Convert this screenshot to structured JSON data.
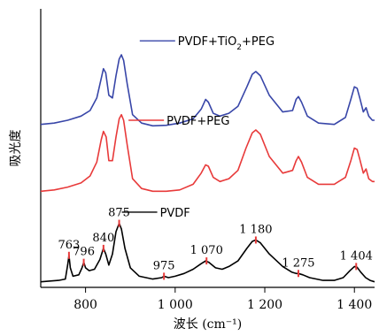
{
  "chart_data": {
    "type": "line",
    "xlabel": "波长 (cm⁻¹)",
    "ylabel": "吸光度",
    "xlim": [
      700,
      1445
    ],
    "ylim": [
      0,
      1.0
    ],
    "x_ticks": [
      {
        "value": 800,
        "label": "800"
      },
      {
        "value": 1000,
        "label": "1 000"
      },
      {
        "value": 1200,
        "label": "1 200"
      },
      {
        "value": 1400,
        "label": "1 400"
      }
    ],
    "grid": false,
    "legend": "inline, above each curve",
    "series": [
      {
        "name": "PVDF+TiO₂+PEG",
        "color": "#3846a8",
        "points": [
          [
            700,
            0.585
          ],
          [
            730,
            0.59
          ],
          [
            760,
            0.6
          ],
          [
            790,
            0.615
          ],
          [
            810,
            0.635
          ],
          [
            825,
            0.68
          ],
          [
            835,
            0.75
          ],
          [
            840,
            0.785
          ],
          [
            845,
            0.77
          ],
          [
            852,
            0.69
          ],
          [
            860,
            0.68
          ],
          [
            868,
            0.76
          ],
          [
            875,
            0.82
          ],
          [
            880,
            0.835
          ],
          [
            885,
            0.815
          ],
          [
            893,
            0.73
          ],
          [
            905,
            0.62
          ],
          [
            925,
            0.59
          ],
          [
            950,
            0.58
          ],
          [
            980,
            0.582
          ],
          [
            1010,
            0.59
          ],
          [
            1040,
            0.605
          ],
          [
            1058,
            0.64
          ],
          [
            1068,
            0.675
          ],
          [
            1074,
            0.665
          ],
          [
            1085,
            0.625
          ],
          [
            1100,
            0.615
          ],
          [
            1120,
            0.625
          ],
          [
            1140,
            0.65
          ],
          [
            1160,
            0.72
          ],
          [
            1172,
            0.765
          ],
          [
            1180,
            0.775
          ],
          [
            1190,
            0.76
          ],
          [
            1210,
            0.69
          ],
          [
            1240,
            0.63
          ],
          [
            1262,
            0.635
          ],
          [
            1270,
            0.675
          ],
          [
            1275,
            0.685
          ],
          [
            1282,
            0.665
          ],
          [
            1295,
            0.615
          ],
          [
            1320,
            0.59
          ],
          [
            1355,
            0.585
          ],
          [
            1380,
            0.61
          ],
          [
            1392,
            0.675
          ],
          [
            1400,
            0.72
          ],
          [
            1406,
            0.715
          ],
          [
            1412,
            0.68
          ],
          [
            1420,
            0.63
          ],
          [
            1426,
            0.645
          ],
          [
            1432,
            0.615
          ],
          [
            1440,
            0.6
          ],
          [
            1445,
            0.6
          ]
        ]
      },
      {
        "name": "PVDF+PEG",
        "color": "#e83a3a",
        "points": [
          [
            700,
            0.345
          ],
          [
            730,
            0.35
          ],
          [
            760,
            0.36
          ],
          [
            790,
            0.375
          ],
          [
            810,
            0.4
          ],
          [
            825,
            0.45
          ],
          [
            835,
            0.53
          ],
          [
            840,
            0.56
          ],
          [
            846,
            0.54
          ],
          [
            852,
            0.455
          ],
          [
            860,
            0.455
          ],
          [
            868,
            0.54
          ],
          [
            875,
            0.605
          ],
          [
            880,
            0.62
          ],
          [
            885,
            0.6
          ],
          [
            893,
            0.51
          ],
          [
            905,
            0.39
          ],
          [
            925,
            0.355
          ],
          [
            950,
            0.345
          ],
          [
            980,
            0.345
          ],
          [
            1010,
            0.35
          ],
          [
            1040,
            0.37
          ],
          [
            1058,
            0.41
          ],
          [
            1068,
            0.44
          ],
          [
            1074,
            0.435
          ],
          [
            1085,
            0.395
          ],
          [
            1100,
            0.38
          ],
          [
            1120,
            0.39
          ],
          [
            1140,
            0.42
          ],
          [
            1158,
            0.5
          ],
          [
            1172,
            0.555
          ],
          [
            1180,
            0.565
          ],
          [
            1190,
            0.55
          ],
          [
            1210,
            0.47
          ],
          [
            1240,
            0.41
          ],
          [
            1262,
            0.42
          ],
          [
            1270,
            0.455
          ],
          [
            1275,
            0.47
          ],
          [
            1282,
            0.45
          ],
          [
            1295,
            0.395
          ],
          [
            1320,
            0.37
          ],
          [
            1355,
            0.37
          ],
          [
            1380,
            0.395
          ],
          [
            1392,
            0.455
          ],
          [
            1400,
            0.5
          ],
          [
            1406,
            0.495
          ],
          [
            1412,
            0.46
          ],
          [
            1420,
            0.41
          ],
          [
            1426,
            0.425
          ],
          [
            1432,
            0.39
          ],
          [
            1440,
            0.38
          ],
          [
            1445,
            0.38
          ]
        ]
      },
      {
        "name": "PVDF",
        "color": "#000000",
        "points": [
          [
            700,
            0.02
          ],
          [
            740,
            0.025
          ],
          [
            755,
            0.03
          ],
          [
            760,
            0.08
          ],
          [
            763,
            0.115
          ],
          [
            766,
            0.07
          ],
          [
            772,
            0.04
          ],
          [
            785,
            0.045
          ],
          [
            792,
            0.07
          ],
          [
            796,
            0.09
          ],
          [
            800,
            0.07
          ],
          [
            808,
            0.06
          ],
          [
            820,
            0.065
          ],
          [
            832,
            0.1
          ],
          [
            840,
            0.14
          ],
          [
            845,
            0.12
          ],
          [
            852,
            0.08
          ],
          [
            860,
            0.12
          ],
          [
            868,
            0.2
          ],
          [
            875,
            0.23
          ],
          [
            880,
            0.21
          ],
          [
            888,
            0.14
          ],
          [
            900,
            0.07
          ],
          [
            920,
            0.04
          ],
          [
            950,
            0.03
          ],
          [
            970,
            0.035
          ],
          [
            975,
            0.04
          ],
          [
            985,
            0.035
          ],
          [
            1000,
            0.04
          ],
          [
            1020,
            0.05
          ],
          [
            1040,
            0.065
          ],
          [
            1058,
            0.085
          ],
          [
            1068,
            0.095
          ],
          [
            1075,
            0.09
          ],
          [
            1090,
            0.07
          ],
          [
            1105,
            0.065
          ],
          [
            1120,
            0.075
          ],
          [
            1140,
            0.095
          ],
          [
            1160,
            0.14
          ],
          [
            1172,
            0.165
          ],
          [
            1180,
            0.17
          ],
          [
            1190,
            0.16
          ],
          [
            1210,
            0.12
          ],
          [
            1240,
            0.075
          ],
          [
            1260,
            0.055
          ],
          [
            1270,
            0.05
          ],
          [
            1275,
            0.05
          ],
          [
            1285,
            0.045
          ],
          [
            1300,
            0.035
          ],
          [
            1330,
            0.025
          ],
          [
            1355,
            0.025
          ],
          [
            1375,
            0.035
          ],
          [
            1390,
            0.06
          ],
          [
            1400,
            0.075
          ],
          [
            1406,
            0.072
          ],
          [
            1414,
            0.055
          ],
          [
            1425,
            0.035
          ],
          [
            1435,
            0.025
          ],
          [
            1445,
            0.02
          ]
        ]
      }
    ],
    "legend_entries": [
      {
        "label_pre": "PVDF+TiO",
        "label_sub": "2",
        "label_post": "+PEG",
        "color": "#3846a8",
        "anchor_x": 1000,
        "anchor_y": 0.885
      },
      {
        "label": "PVDF+PEG",
        "color": "#e83a3a",
        "anchor_x": 975,
        "anchor_y": 0.6
      },
      {
        "label": "PVDF",
        "color": "#000000",
        "anchor_x": 960,
        "anchor_y": 0.27
      }
    ],
    "peak_labels": [
      {
        "x": 763,
        "y": 0.115,
        "label": "763"
      },
      {
        "x": 796,
        "y": 0.09,
        "label": "796"
      },
      {
        "x": 840,
        "y": 0.14,
        "label": "840"
      },
      {
        "x": 875,
        "y": 0.23,
        "label": "875"
      },
      {
        "x": 975,
        "y": 0.04,
        "label": "975"
      },
      {
        "x": 1070,
        "y": 0.095,
        "label": "1 070"
      },
      {
        "x": 1180,
        "y": 0.17,
        "label": "1 180"
      },
      {
        "x": 1275,
        "y": 0.05,
        "label": "1 275"
      },
      {
        "x": 1404,
        "y": 0.075,
        "label": "1 404"
      }
    ]
  }
}
